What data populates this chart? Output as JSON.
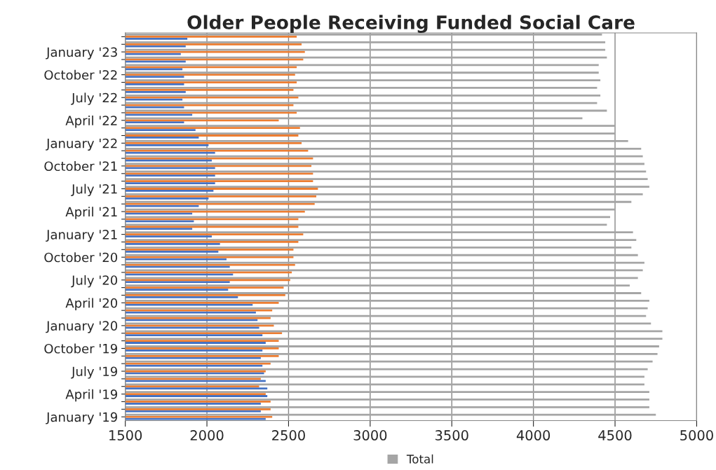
{
  "chart_data": {
    "type": "bar",
    "orientation": "horizontal",
    "title": "Older People Receiving Funded Social Care",
    "categories": [
      null,
      null,
      "January '23",
      null,
      null,
      "October '22",
      null,
      null,
      "July '22",
      null,
      null,
      "April '22",
      null,
      null,
      "January '22",
      null,
      null,
      "October '21",
      null,
      null,
      "July '21",
      null,
      null,
      "April '21",
      null,
      null,
      "January '21",
      null,
      null,
      "October '20",
      null,
      null,
      "July '20",
      null,
      null,
      "April '20",
      null,
      null,
      "January '20",
      null,
      null,
      "October '19",
      null,
      null,
      "July '19",
      null,
      null,
      "April '19",
      null,
      null,
      "January '19"
    ],
    "series": [
      {
        "color": "#4472c4",
        "values": [
          1880,
          1870,
          1840,
          1870,
          1850,
          1860,
          1860,
          1870,
          1850,
          1860,
          1910,
          1860,
          1930,
          1950,
          2010,
          2050,
          2030,
          2050,
          2050,
          2050,
          2040,
          2010,
          1950,
          1910,
          1920,
          1910,
          2030,
          2080,
          2070,
          2120,
          2140,
          2160,
          2140,
          2130,
          2190,
          2280,
          2300,
          2310,
          2320,
          2340,
          2360,
          2340,
          2330,
          2340,
          2350,
          2360,
          2370,
          2370,
          2330,
          2330,
          2360
        ]
      },
      {
        "color": "#ed7d31",
        "values": [
          2550,
          2580,
          2600,
          2590,
          2550,
          2540,
          2550,
          2530,
          2560,
          2530,
          2550,
          2440,
          2570,
          2560,
          2580,
          2620,
          2650,
          2640,
          2650,
          2650,
          2680,
          2670,
          2660,
          2600,
          2560,
          2560,
          2590,
          2560,
          2530,
          2530,
          2540,
          2520,
          2510,
          2470,
          2480,
          2440,
          2400,
          2390,
          2410,
          2460,
          2440,
          2440,
          2440,
          2390,
          2360,
          2330,
          2320,
          2360,
          2390,
          2390,
          2400
        ]
      },
      {
        "name": "Total",
        "color": "#a5a5a5",
        "values": [
          4420,
          4440,
          4440,
          4450,
          4400,
          4400,
          4410,
          4390,
          4410,
          4390,
          4450,
          4300,
          4500,
          4500,
          4580,
          4660,
          4670,
          4680,
          4690,
          4700,
          4710,
          4670,
          4600,
          4500,
          4470,
          4450,
          4610,
          4630,
          4600,
          4640,
          4680,
          4670,
          4640,
          4590,
          4660,
          4710,
          4700,
          4690,
          4720,
          4790,
          4790,
          4770,
          4760,
          4730,
          4700,
          4680,
          4680,
          4710,
          4710,
          4710,
          4750
        ]
      }
    ],
    "xlim": [
      1500,
      5000
    ],
    "xticks": [
      1500,
      2000,
      2500,
      3000,
      3500,
      4000,
      4500,
      5000
    ],
    "grid": "x",
    "legend": "bottom"
  }
}
